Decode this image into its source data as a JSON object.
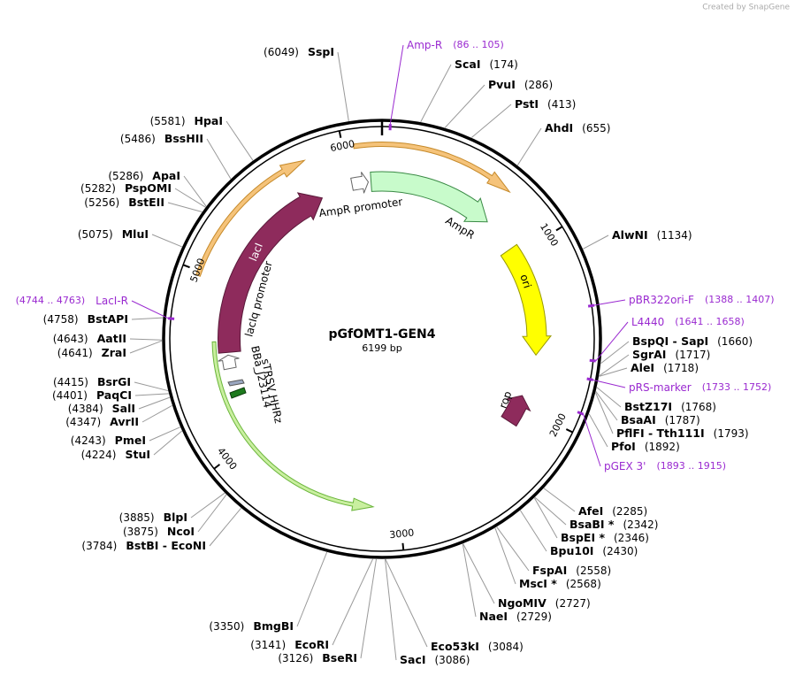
{
  "credit": "Created by SnapGene",
  "map": {
    "name": "pGfOMT1-GEN4",
    "size": "6199 bp",
    "sites": [
      {
        "name": "SspI",
        "position": "(6049)"
      },
      {
        "name": "HpaI",
        "position": "(5581)"
      },
      {
        "name": "BssHII",
        "position": "(5486)"
      },
      {
        "name": "ApaI",
        "position": "(5286)"
      },
      {
        "name": "PspOMI",
        "position": "(5282)"
      },
      {
        "name": "BstEII",
        "position": "(5256)"
      },
      {
        "name": "MluI",
        "position": "(5075)"
      },
      {
        "name": "BstAPI",
        "position": "(4758)"
      },
      {
        "name": "AatII",
        "position": "(4643)"
      },
      {
        "name": "ZraI",
        "position": "(4641)"
      },
      {
        "name": "BsrGI",
        "position": "(4415)"
      },
      {
        "name": "PaqCI",
        "position": "(4401)"
      },
      {
        "name": "SalI",
        "position": "(4384)"
      },
      {
        "name": "AvrII",
        "position": "(4347)"
      },
      {
        "name": "PmeI",
        "position": "(4243)"
      },
      {
        "name": "StuI",
        "position": "(4224)"
      },
      {
        "name": "BlpI",
        "position": "(3885)"
      },
      {
        "name": "NcoI",
        "position": "(3875)"
      },
      {
        "name": "BstBI - EcoNI",
        "position": "(3784)"
      },
      {
        "name": "BmgBI",
        "position": "(3350)"
      },
      {
        "name": "EcoRI",
        "position": "(3141)"
      },
      {
        "name": "BseRI",
        "position": "(3126)"
      },
      {
        "name": "ScaI",
        "position": "(174)"
      },
      {
        "name": "PvuI",
        "position": "(286)"
      },
      {
        "name": "PstI",
        "position": "(413)"
      },
      {
        "name": "AhdI",
        "position": "(655)"
      },
      {
        "name": "AlwNI",
        "position": "(1134)"
      },
      {
        "name": "BspQI - SapI",
        "position": "(1660)"
      },
      {
        "name": "SgrAI",
        "position": "(1717)"
      },
      {
        "name": "AleI",
        "position": "(1718)"
      },
      {
        "name": "BstZ17I",
        "position": "(1768)"
      },
      {
        "name": "BsaAI",
        "position": "(1787)"
      },
      {
        "name": "PflFI - Tth111I",
        "position": "(1793)"
      },
      {
        "name": "PfoI",
        "position": "(1892)"
      },
      {
        "name": "AfeI",
        "position": "(2285)"
      },
      {
        "name": "BsaBI *",
        "position": "(2342)"
      },
      {
        "name": "BspEI *",
        "position": "(2346)"
      },
      {
        "name": "Bpu10I",
        "position": "(2430)"
      },
      {
        "name": "FspAI",
        "position": "(2558)"
      },
      {
        "name": "MscI *",
        "position": "(2568)"
      },
      {
        "name": "NgoMIV",
        "position": "(2727)"
      },
      {
        "name": "NaeI",
        "position": "(2729)"
      },
      {
        "name": "Eco53kI",
        "position": "(3084)"
      },
      {
        "name": "SacI",
        "position": "(3086)"
      }
    ],
    "primers": [
      {
        "name": "Amp-R",
        "range": "(86 .. 105)"
      },
      {
        "name": "pBR322ori-F",
        "range": "(1388 .. 1407)"
      },
      {
        "name": "L4440",
        "range": "(1641 .. 1658)"
      },
      {
        "name": "pRS-marker",
        "range": "(1733 .. 1752)"
      },
      {
        "name": "pGEX 3'",
        "range": "(1893 .. 1915)"
      },
      {
        "name": "LacI-R",
        "range": "(4744 .. 4763)"
      }
    ],
    "features": [
      "AmpR promoter",
      "AmpR",
      "ori",
      "rop",
      "lacI",
      "lacIq promoter",
      "BBa_J23114",
      "sTRSV HHRz"
    ],
    "ruler": [
      1000,
      2000,
      3000,
      4000,
      5000,
      6000
    ]
  }
}
